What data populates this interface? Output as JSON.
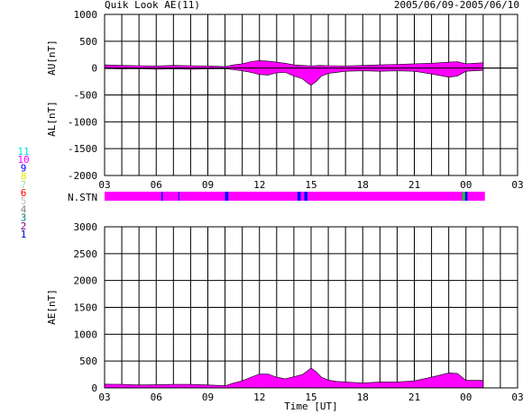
{
  "header": {
    "title": "Quik Look AE(11)",
    "date_range": "2005/06/09-2005/06/10"
  },
  "colors": {
    "fill": "#ff00ff",
    "ink": "#000000",
    "blue": "#0000ff",
    "green": "#00cc00"
  },
  "station_legend": [
    {
      "label": "11",
      "color": "#00e0e0"
    },
    {
      "label": "10",
      "color": "#ff00ff"
    },
    {
      "label": "9",
      "color": "#0000ff"
    },
    {
      "label": "8",
      "color": "#e8e800"
    },
    {
      "label": "7",
      "color": "#a0e0a0"
    },
    {
      "label": "6",
      "color": "#ff0000"
    },
    {
      "label": "5",
      "color": "#c0c0c0"
    },
    {
      "label": "4",
      "color": "#808080"
    },
    {
      "label": "3",
      "color": "#008080"
    },
    {
      "label": "2",
      "color": "#800080"
    },
    {
      "label": "1",
      "color": "#0000c0"
    }
  ],
  "x_axis": {
    "label": "Time [UT]",
    "tick_labels": [
      "03",
      "06",
      "09",
      "12",
      "15",
      "18",
      "21",
      "00",
      "03"
    ]
  },
  "nstn_label": "N.STN",
  "chart_data": [
    {
      "type": "area",
      "name": "AU/AL",
      "ylabel_top": "AU[nT]",
      "ylabel_bottom": "AL[nT]",
      "ylim": [
        -2000,
        1000
      ],
      "yticks": [
        1000,
        500,
        0,
        -500,
        -1000,
        -1500,
        -2000
      ],
      "xlim": [
        3,
        27
      ],
      "grid": true,
      "series": [
        {
          "name": "AU",
          "x": [
            3.0,
            4.0,
            5.0,
            6.0,
            7.0,
            8.0,
            9.0,
            10.0,
            10.5,
            11.0,
            11.5,
            12.0,
            12.5,
            13.0,
            13.5,
            14.0,
            14.5,
            15.0,
            15.5,
            16.0,
            17.0,
            18.0,
            19.0,
            20.0,
            21.0,
            22.0,
            23.0,
            23.5,
            24.0,
            25.0
          ],
          "values": [
            60,
            50,
            45,
            40,
            50,
            45,
            40,
            30,
            60,
            80,
            120,
            140,
            130,
            110,
            90,
            60,
            50,
            40,
            50,
            45,
            40,
            50,
            60,
            70,
            80,
            90,
            110,
            120,
            80,
            100
          ]
        },
        {
          "name": "AL",
          "x": [
            3.0,
            4.0,
            5.0,
            6.0,
            7.0,
            8.0,
            9.0,
            10.0,
            10.5,
            11.0,
            11.5,
            12.0,
            12.5,
            13.0,
            13.5,
            14.0,
            14.5,
            14.8,
            15.0,
            15.3,
            15.6,
            16.0,
            16.5,
            17.0,
            18.0,
            19.0,
            20.0,
            21.0,
            22.0,
            23.0,
            23.5,
            24.0,
            25.0
          ],
          "values": [
            -10,
            -15,
            -10,
            -20,
            -15,
            -20,
            -15,
            -10,
            -30,
            -50,
            -80,
            -120,
            -130,
            -90,
            -80,
            -150,
            -200,
            -280,
            -320,
            -250,
            -150,
            -100,
            -80,
            -60,
            -50,
            -60,
            -50,
            -60,
            -110,
            -170,
            -150,
            -60,
            -40
          ]
        }
      ]
    },
    {
      "type": "area",
      "name": "AE",
      "ylabel": "AE[nT]",
      "ylim": [
        0,
        3000
      ],
      "yticks": [
        3000,
        2500,
        2000,
        1500,
        1000,
        500,
        0
      ],
      "xlim": [
        3,
        27
      ],
      "grid": true,
      "series": [
        {
          "name": "AE",
          "x": [
            3.0,
            4.0,
            5.0,
            6.0,
            7.0,
            8.0,
            9.0,
            10.0,
            10.5,
            11.0,
            11.5,
            12.0,
            12.5,
            13.0,
            13.5,
            14.0,
            14.5,
            14.8,
            15.0,
            15.3,
            15.6,
            16.0,
            16.5,
            17.0,
            18.0,
            19.0,
            20.0,
            21.0,
            22.0,
            23.0,
            23.5,
            24.0,
            25.0
          ],
          "values": [
            70,
            65,
            55,
            60,
            65,
            65,
            55,
            40,
            90,
            130,
            200,
            260,
            260,
            200,
            170,
            210,
            250,
            320,
            370,
            300,
            200,
            145,
            120,
            110,
            90,
            110,
            110,
            130,
            200,
            280,
            270,
            140,
            140
          ]
        }
      ]
    },
    {
      "type": "heatmap",
      "name": "N.STN",
      "xlim": [
        3,
        27
      ],
      "segments": [
        {
          "start": 3.0,
          "end": 6.3,
          "color": "#ff00ff"
        },
        {
          "start": 6.3,
          "end": 6.38,
          "color": "#0000ff"
        },
        {
          "start": 6.38,
          "end": 7.3,
          "color": "#ff00ff"
        },
        {
          "start": 7.3,
          "end": 7.36,
          "color": "#0000ff"
        },
        {
          "start": 7.36,
          "end": 10.0,
          "color": "#ff00ff"
        },
        {
          "start": 10.0,
          "end": 10.2,
          "color": "#0000ff"
        },
        {
          "start": 10.2,
          "end": 14.2,
          "color": "#ff00ff"
        },
        {
          "start": 14.2,
          "end": 14.4,
          "color": "#0000ff"
        },
        {
          "start": 14.4,
          "end": 14.6,
          "color": "#ff00ff"
        },
        {
          "start": 14.6,
          "end": 14.8,
          "color": "#0000ff"
        },
        {
          "start": 14.8,
          "end": 23.8,
          "color": "#ff00ff"
        },
        {
          "start": 23.8,
          "end": 23.95,
          "color": "#00cc00"
        },
        {
          "start": 23.95,
          "end": 24.1,
          "color": "#0000ff"
        },
        {
          "start": 24.1,
          "end": 25.1,
          "color": "#ff00ff"
        }
      ]
    }
  ]
}
